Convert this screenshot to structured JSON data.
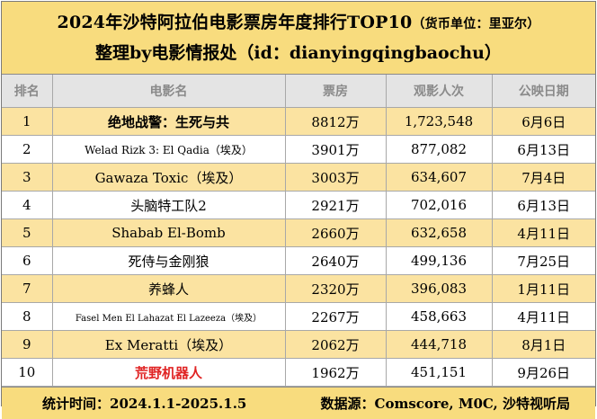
{
  "header": {
    "title_main": "2024年沙特阿拉伯电影票房年度排行TOP10",
    "title_note": "（货币单位：里亚尔）",
    "subtitle": "整理by电影情报处（id：dianyingqingbaochu）"
  },
  "table": {
    "columns": [
      "排名",
      "电影名",
      "票房",
      "观影人次",
      "公映日期"
    ],
    "rows": [
      {
        "rank": "1",
        "title": "绝地战警：生死与共",
        "box_office": "8812万",
        "admissions": "1,723,548",
        "release": "6月6日"
      },
      {
        "rank": "2",
        "title": "Welad Rizk 3: El Qadia（埃及）",
        "box_office": "3901万",
        "admissions": "877,082",
        "release": "6月13日"
      },
      {
        "rank": "3",
        "title": "Gawaza Toxic（埃及）",
        "box_office": "3003万",
        "admissions": "634,607",
        "release": "7月4日"
      },
      {
        "rank": "4",
        "title": "头脑特工队2",
        "box_office": "2921万",
        "admissions": "702,016",
        "release": "6月13日"
      },
      {
        "rank": "5",
        "title": "Shabab El-Bomb",
        "box_office": "2660万",
        "admissions": "632,658",
        "release": "4月11日"
      },
      {
        "rank": "6",
        "title": "死侍与金刚狼",
        "box_office": "2640万",
        "admissions": "499,136",
        "release": "7月25日"
      },
      {
        "rank": "7",
        "title": "养蜂人",
        "box_office": "2320万",
        "admissions": "396,083",
        "release": "1月11日"
      },
      {
        "rank": "8",
        "title": "Fasel Men El Lahazat El Lazeeza（埃及）",
        "box_office": "2267万",
        "admissions": "458,663",
        "release": "4月11日"
      },
      {
        "rank": "9",
        "title": "Ex Meratti（埃及）",
        "box_office": "2062万",
        "admissions": "444,718",
        "release": "8月1日"
      },
      {
        "rank": "10",
        "title": "荒野机器人",
        "box_office": "1962万",
        "admissions": "451,151",
        "release": "9月26日"
      }
    ]
  },
  "footer": {
    "period": "统计时间：2024.1.1-2025.1.5",
    "source": "数据源：Comscore, M0C, 沙特视听局"
  },
  "colors": {
    "header_bg": "#f8dc7e",
    "odd_row_bg": "#fbe3a1",
    "highlight_title": "#e02424"
  }
}
